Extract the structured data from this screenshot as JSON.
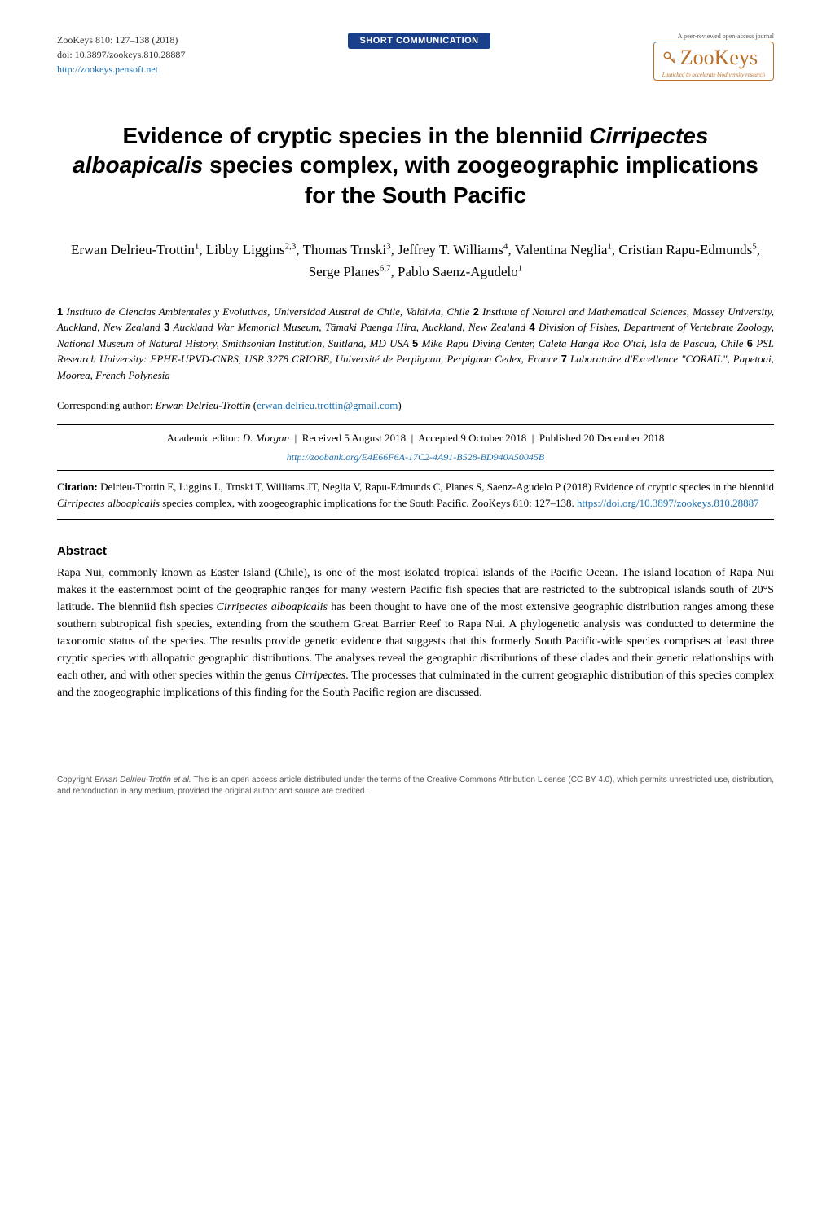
{
  "header": {
    "journal": "ZooKeys 810: 127–138 (2018)",
    "doi": "doi: 10.3897/zookeys.810.28887",
    "url": "http://zookeys.pensoft.net",
    "badge": "SHORT COMMUNICATION",
    "peer_review": "A peer-reviewed open-access journal",
    "logo_main": "ZooKeys",
    "logo_tagline": "Launched to accelerate biodiversity research"
  },
  "title": {
    "line1": "Evidence of cryptic species in the blenniid ",
    "species1": "Cirripectes alboapicalis",
    "line2": " species complex, with zoogeographic implications for the South Pacific"
  },
  "authors": [
    {
      "name": "Erwan Delrieu-Trottin",
      "sup": "1"
    },
    {
      "name": "Libby Liggins",
      "sup": "2,3"
    },
    {
      "name": "Thomas Trnski",
      "sup": "3"
    },
    {
      "name": "Jeffrey T. Williams",
      "sup": "4"
    },
    {
      "name": "Valentina Neglia",
      "sup": "1"
    },
    {
      "name": "Cristian Rapu-Edmunds",
      "sup": "5"
    },
    {
      "name": "Serge Planes",
      "sup": "6,7"
    },
    {
      "name": "Pablo Saenz-Agudelo",
      "sup": "1"
    }
  ],
  "affiliations": [
    {
      "num": "1",
      "text": "Instituto de Ciencias Ambientales y Evolutivas, Universidad Austral de Chile, Valdivia, Chile"
    },
    {
      "num": "2",
      "text": "Institute of Natural and Mathematical Sciences, Massey University, Auckland, New Zealand"
    },
    {
      "num": "3",
      "text": "Auckland War Memorial Museum, Tāmaki Paenga Hira, Auckland, New Zealand"
    },
    {
      "num": "4",
      "text": "Division of Fishes, Department of Vertebrate Zoology, National Museum of Natural History, Smithsonian Institution, Suitland, MD USA"
    },
    {
      "num": "5",
      "text": "Mike Rapu Diving Center, Caleta Hanga Roa O'tai, Isla de Pascua, Chile"
    },
    {
      "num": "6",
      "text": "PSL Research University: EPHE-UPVD-CNRS, USR 3278 CRIOBE, Université de Perpignan, Perpignan Cedex, France"
    },
    {
      "num": "7",
      "text": "Laboratoire d'Excellence \"CORAIL\", Papetoai, Moorea, French Polynesia"
    }
  ],
  "corresponding": {
    "label": "Corresponding author:",
    "author": "Erwan Delrieu-Trottin",
    "email": "erwan.delrieu.trottin@gmail.com"
  },
  "editorial": {
    "editor_label": "Academic editor:",
    "editor": "D. Morgan",
    "received": "Received 5 August 2018",
    "accepted": "Accepted 9 October 2018",
    "published": "Published 20 December 2018"
  },
  "zoobank": "http://zoobank.org/E4E66F6A-17C2-4A91-B528-BD940A50045B",
  "citation": {
    "label": "Citation:",
    "text1": "Delrieu-Trottin E, Liggins L, Trnski T, Williams JT, Neglia V, Rapu-Edmunds C, Planes S, Saenz-Agudelo P (2018) Evidence of cryptic species in the blenniid ",
    "species": "Cirripectes alboapicalis",
    "text2": " species complex, with zoogeographic implications for the South Pacific. ZooKeys 810: 127–138. ",
    "doi_url": "https://doi.org/10.3897/zookeys.810.28887"
  },
  "abstract": {
    "heading": "Abstract",
    "body_parts": [
      {
        "type": "text",
        "value": "Rapa Nui, commonly known as Easter Island (Chile), is one of the most isolated tropical islands of the Pacific Ocean. The island location of Rapa Nui makes it the easternmost point of the geographic ranges for many western Pacific fish species that are restricted to the subtropical islands south of 20°S latitude. The blenniid fish species "
      },
      {
        "type": "em",
        "value": "Cirripectes alboapicalis"
      },
      {
        "type": "text",
        "value": " has been thought to have one of the most extensive geographic distribution ranges among these southern subtropical fish species, extending from the southern Great Barrier Reef to Rapa Nui. A phylogenetic analysis was conducted to determine the taxonomic status of the species. The results provide genetic evidence that suggests that this formerly South Pacific-wide species comprises at least three cryptic species with allopatric geographic distributions. The analyses reveal the geographic distributions of these clades and their genetic relationships with each other, and with other species within the genus "
      },
      {
        "type": "em",
        "value": "Cirripectes"
      },
      {
        "type": "text",
        "value": ". The processes that culminated in the current geographic distribution of this species complex and the zoogeographic implications of this finding for the South Pacific region are discussed."
      }
    ]
  },
  "copyright": {
    "prefix": "Copyright ",
    "holder": "Erwan Delrieu-Trottin et al.",
    "text": " This is an open access article distributed under the terms of the Creative Commons Attribution License (CC BY 4.0), which permits unrestricted use, distribution, and reproduction in any medium, provided the original author and source are credited."
  },
  "colors": {
    "link": "#1a6fb0",
    "badge_bg": "#1a3f8a",
    "brand": "#b8702a",
    "text": "#000000",
    "muted": "#555555"
  }
}
